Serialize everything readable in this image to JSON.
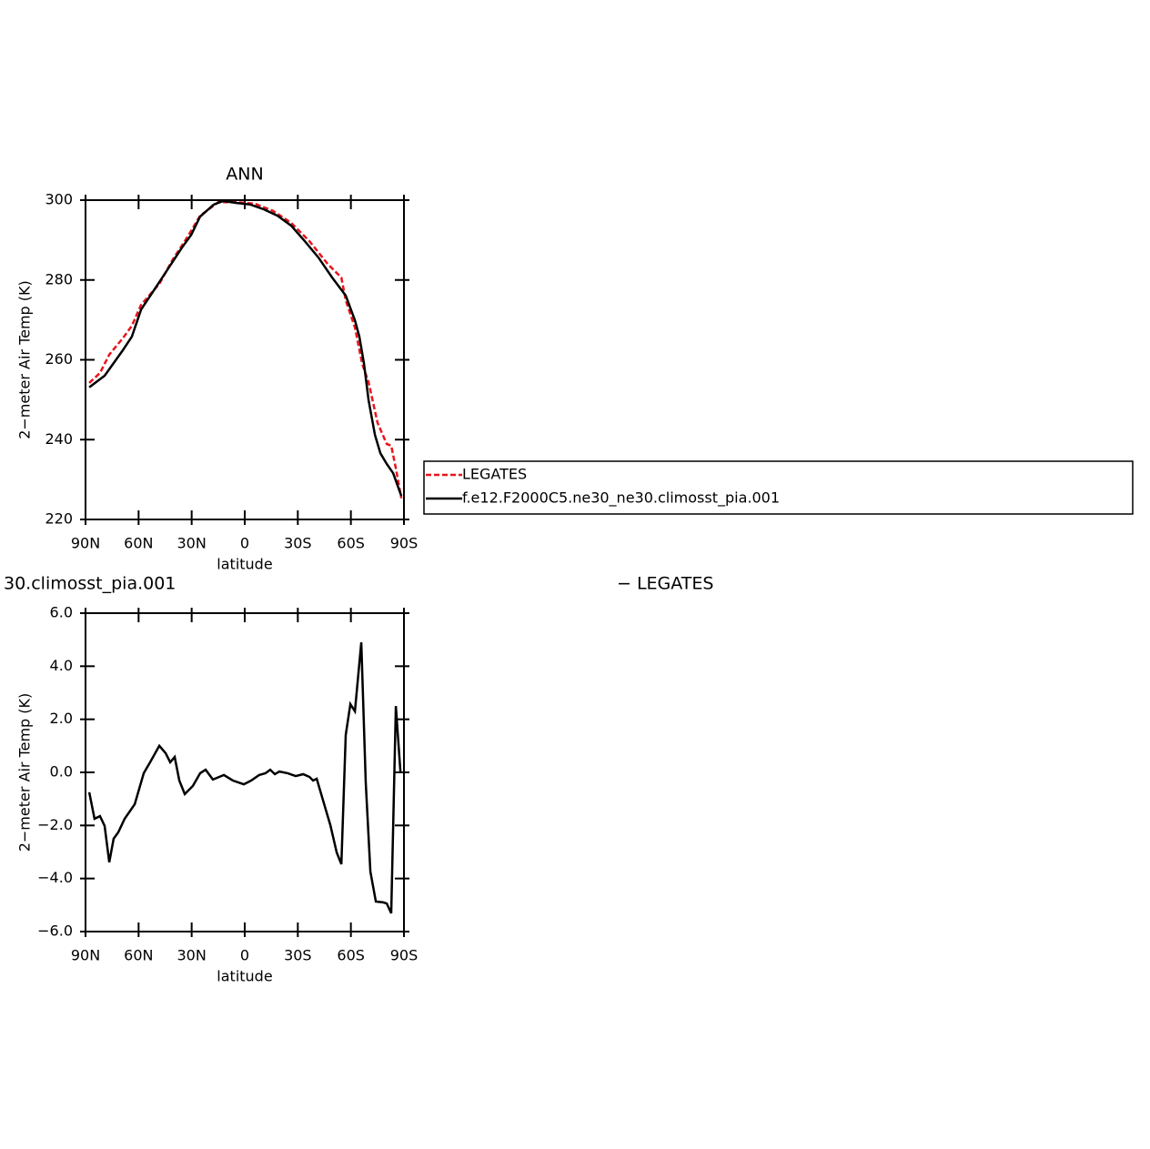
{
  "chart_data": [
    {
      "type": "line",
      "title": "ANN",
      "xlabel": "latitude",
      "ylabel": "2−meter Air Temp (K)",
      "xlim": [
        90,
        -90
      ],
      "xticks": [
        {
          "value": 90,
          "label": "90N"
        },
        {
          "value": 60,
          "label": "60N"
        },
        {
          "value": 30,
          "label": "30N"
        },
        0,
        {
          "value": -30,
          "label": "30S"
        },
        {
          "value": -60,
          "label": "60S"
        },
        {
          "value": -90,
          "label": "90S"
        }
      ],
      "ylim": [
        220,
        300
      ],
      "yticks": [
        220,
        240,
        260,
        280,
        300
      ],
      "legend": "right",
      "series": [
        {
          "name": "LEGATES",
          "color": "#e8141c",
          "dash": "dashed",
          "x": [
            87.9,
            81.8,
            76.6,
            68.9,
            63.8,
            58.6,
            48.3,
            40.6,
            32.9,
            25.2,
            14.9,
            4.6,
            -5.7,
            -16.0,
            -26.3,
            -36.6,
            -46.9,
            -54.6,
            -57.1,
            -62.3,
            -66.4,
            -70.0,
            -75.1,
            -80.3,
            -82.8,
            -85.4,
            -88.5
          ],
          "values": [
            254.2,
            256.7,
            261.3,
            265.4,
            268.5,
            273.8,
            279.0,
            285.2,
            290.4,
            296.1,
            299.5,
            299.5,
            299.1,
            297.3,
            294.3,
            289.7,
            284.0,
            280.6,
            274.9,
            268.1,
            259.0,
            254.4,
            244.2,
            238.9,
            238.5,
            232.8,
            225.3
          ]
        },
        {
          "name": "f.e12.F2000C5.ne30_ne30.climosst_pia.001",
          "color": "#000000",
          "dash": "solid",
          "x": [
            87.9,
            79.2,
            68.9,
            63.8,
            58.6,
            50.9,
            43.2,
            35.5,
            30.3,
            25.2,
            17.5,
            12.3,
            4.6,
            -3.1,
            -10.8,
            -18.5,
            -26.3,
            -34.0,
            -41.7,
            -49.4,
            -57.1,
            -62.3,
            -64.8,
            -67.4,
            -70.0,
            -73.6,
            -76.7,
            -80.3,
            -83.9,
            -88.5
          ],
          "values": [
            253.1,
            256.0,
            262.4,
            265.8,
            272.6,
            277.7,
            282.9,
            288.1,
            291.3,
            295.9,
            298.9,
            299.8,
            299.3,
            298.9,
            297.7,
            296.1,
            293.6,
            289.7,
            285.6,
            280.6,
            276.1,
            269.9,
            265.8,
            259.0,
            249.9,
            241.2,
            236.6,
            233.9,
            231.6,
            225.9
          ]
        }
      ]
    },
    {
      "type": "line",
      "title_left": "30.climosst_pia.001",
      "title_right": "− LEGATES",
      "xlabel": "latitude",
      "ylabel": "2−meter Air Temp (K)",
      "xlim": [
        90,
        -90
      ],
      "xticks": [
        {
          "value": 90,
          "label": "90N"
        },
        {
          "value": 60,
          "label": "60N"
        },
        {
          "value": 30,
          "label": "30N"
        },
        0,
        {
          "value": -30,
          "label": "30S"
        },
        {
          "value": -60,
          "label": "60S"
        },
        {
          "value": -90,
          "label": "90S"
        }
      ],
      "ylim": [
        -6,
        6
      ],
      "yticks": [
        {
          "value": -6,
          "label": "−6.0"
        },
        {
          "value": -4,
          "label": "−4.0"
        },
        {
          "value": -2,
          "label": "−2.0"
        },
        {
          "value": 0,
          "label": "0.0"
        },
        {
          "value": 2,
          "label": "2.0"
        },
        {
          "value": 4,
          "label": "4.0"
        },
        {
          "value": 6,
          "label": "6.0"
        }
      ],
      "series": [
        {
          "color": "#000000",
          "dash": "solid",
          "x": [
            87.9,
            84.9,
            81.8,
            79.2,
            76.6,
            74.1,
            71.5,
            67.9,
            62.2,
            57.1,
            53.5,
            48.3,
            44.7,
            42.1,
            39.6,
            37.0,
            33.9,
            29.3,
            25.2,
            22.1,
            18.0,
            11.8,
            6.7,
            0.5,
            -3.6,
            -8.2,
            -11.8,
            -14.4,
            -17.0,
            -19.6,
            -24.2,
            -28.8,
            -33.0,
            -36.6,
            -38.6,
            -40.7,
            -44.3,
            -48.4,
            -52.0,
            -54.6,
            -57.1,
            -59.7,
            -62.3,
            -65.9,
            -68.4,
            -71.0,
            -74.1,
            -78.2,
            -80.3,
            -82.8,
            -85.4,
            -88.0
          ],
          "values": [
            -0.75,
            -1.75,
            -1.65,
            -2.02,
            -3.39,
            -2.5,
            -2.26,
            -1.75,
            -1.2,
            -0.03,
            0.38,
            1.0,
            0.72,
            0.38,
            0.58,
            -0.31,
            -0.82,
            -0.51,
            -0.03,
            0.1,
            -0.27,
            -0.1,
            -0.31,
            -0.45,
            -0.31,
            -0.1,
            -0.03,
            0.1,
            -0.07,
            0.03,
            -0.03,
            -0.14,
            -0.07,
            -0.17,
            -0.31,
            -0.24,
            -1.06,
            -1.99,
            -3.02,
            -3.46,
            1.41,
            2.57,
            2.3,
            4.9,
            -0.38,
            -3.74,
            -4.87,
            -4.9,
            -4.94,
            -5.31,
            2.5,
            0.03
          ]
        }
      ]
    }
  ]
}
